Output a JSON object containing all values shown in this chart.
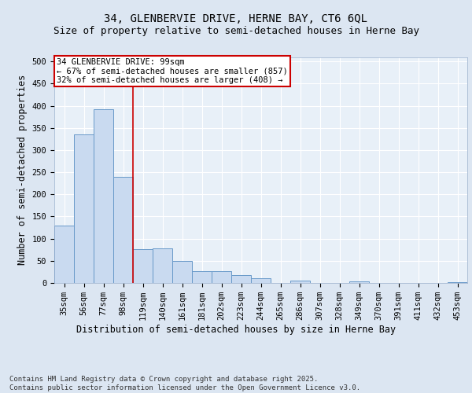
{
  "title_line1": "34, GLENBERVIE DRIVE, HERNE BAY, CT6 6QL",
  "title_line2": "Size of property relative to semi-detached houses in Herne Bay",
  "xlabel": "Distribution of semi-detached houses by size in Herne Bay",
  "ylabel": "Number of semi-detached properties",
  "categories": [
    "35sqm",
    "56sqm",
    "77sqm",
    "98sqm",
    "119sqm",
    "140sqm",
    "161sqm",
    "181sqm",
    "202sqm",
    "223sqm",
    "244sqm",
    "265sqm",
    "286sqm",
    "307sqm",
    "328sqm",
    "349sqm",
    "370sqm",
    "391sqm",
    "411sqm",
    "432sqm",
    "453sqm"
  ],
  "values": [
    130,
    335,
    392,
    240,
    77,
    78,
    50,
    26,
    26,
    17,
    10,
    0,
    5,
    0,
    0,
    3,
    0,
    0,
    0,
    0,
    1
  ],
  "bar_color": "#c9daf0",
  "bar_edge_color": "#6899c9",
  "vline_color": "#cc0000",
  "vline_pos": 3.5,
  "annotation_box_text": "34 GLENBERVIE DRIVE: 99sqm\n← 67% of semi-detached houses are smaller (857)\n32% of semi-detached houses are larger (408) →",
  "annotation_box_color": "#cc0000",
  "annotation_box_bg": "#ffffff",
  "footer_text": "Contains HM Land Registry data © Crown copyright and database right 2025.\nContains public sector information licensed under the Open Government Licence v3.0.",
  "ylim": [
    0,
    510
  ],
  "yticks": [
    0,
    50,
    100,
    150,
    200,
    250,
    300,
    350,
    400,
    450,
    500
  ],
  "bg_color": "#dce6f2",
  "plot_bg_color": "#e8f0f8",
  "grid_color": "#ffffff",
  "title_fontsize": 10,
  "subtitle_fontsize": 9,
  "axis_label_fontsize": 8.5,
  "tick_fontsize": 7.5,
  "annotation_fontsize": 7.5,
  "footer_fontsize": 6.5
}
